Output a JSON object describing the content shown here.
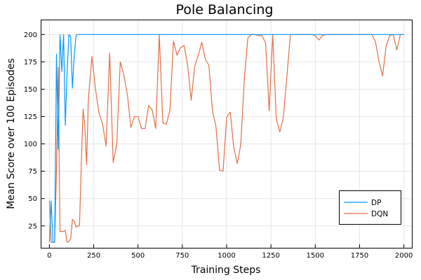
{
  "chart_data": {
    "type": "line",
    "title": "Pole Balancing",
    "xlabel": "Training Steps",
    "ylabel": "Mean Score over 100 Episodes",
    "xlim": [
      -45,
      2045
    ],
    "ylim": [
      5,
      213
    ],
    "xticks": [
      0,
      250,
      500,
      750,
      1000,
      1250,
      1500,
      1750,
      2000
    ],
    "yticks": [
      25,
      50,
      75,
      100,
      125,
      150,
      175,
      200
    ],
    "grid": true,
    "legend_position": "bottom-right",
    "series": [
      {
        "name": "DP",
        "color": "#009AFA",
        "x": [
          0,
          10,
          20,
          30,
          40,
          50,
          60,
          70,
          80,
          90,
          100,
          110,
          120,
          130,
          140,
          150,
          160,
          170,
          180,
          200,
          250,
          300,
          400,
          500,
          750,
          1000,
          1250,
          1500,
          1750,
          2000
        ],
        "y": [
          10,
          48,
          10,
          10,
          182,
          95,
          200,
          166,
          200,
          117,
          165,
          200,
          198,
          151,
          180,
          199,
          200,
          200,
          200,
          200,
          200,
          200,
          200,
          200,
          200,
          200,
          200,
          200,
          200,
          200
        ]
      },
      {
        "name": "DQN",
        "color": "#E26F46",
        "x": [
          0,
          10,
          20,
          30,
          40,
          50,
          60,
          70,
          80,
          90,
          100,
          110,
          120,
          130,
          140,
          150,
          160,
          170,
          180,
          190,
          200,
          210,
          220,
          240,
          260,
          280,
          300,
          320,
          340,
          360,
          380,
          400,
          420,
          440,
          460,
          480,
          500,
          520,
          540,
          560,
          580,
          600,
          620,
          640,
          660,
          680,
          700,
          720,
          740,
          760,
          780,
          800,
          820,
          840,
          860,
          880,
          900,
          920,
          940,
          960,
          980,
          1000,
          1010,
          1020,
          1040,
          1060,
          1080,
          1100,
          1120,
          1140,
          1160,
          1180,
          1200,
          1220,
          1240,
          1260,
          1280,
          1300,
          1320,
          1340,
          1360,
          1380,
          1400,
          1420,
          1440,
          1460,
          1480,
          1500,
          1520,
          1540,
          1560,
          1580,
          1600,
          1620,
          1640,
          1660,
          1680,
          1700,
          1720,
          1740,
          1760,
          1780,
          1800,
          1820,
          1840,
          1860,
          1880,
          1900,
          1920,
          1940,
          1960,
          1980,
          2000
        ],
        "y": [
          48,
          10,
          10,
          10,
          75,
          170,
          20,
          20,
          20,
          21,
          10,
          11,
          13,
          31,
          29,
          24,
          25,
          25,
          80,
          132,
          117,
          81,
          140,
          180,
          150,
          128,
          118,
          98,
          183,
          83,
          100,
          175,
          163,
          145,
          115,
          125,
          125,
          114,
          114,
          135,
          131,
          114,
          200,
          119,
          118,
          131,
          194,
          181,
          188,
          190,
          172,
          140,
          171,
          181,
          193,
          177,
          172,
          130,
          116,
          76,
          75,
          124,
          127,
          129,
          97,
          82,
          100,
          160,
          197,
          200,
          200,
          199,
          199,
          192,
          130,
          200,
          123,
          111,
          124,
          162,
          200,
          200,
          200,
          200,
          200,
          200,
          200,
          199,
          195,
          199,
          200,
          200,
          200,
          200,
          200,
          200,
          200,
          200,
          200,
          200,
          200,
          200,
          200,
          200,
          193,
          175,
          162,
          190,
          199,
          200,
          186,
          200,
          200
        ]
      }
    ]
  }
}
